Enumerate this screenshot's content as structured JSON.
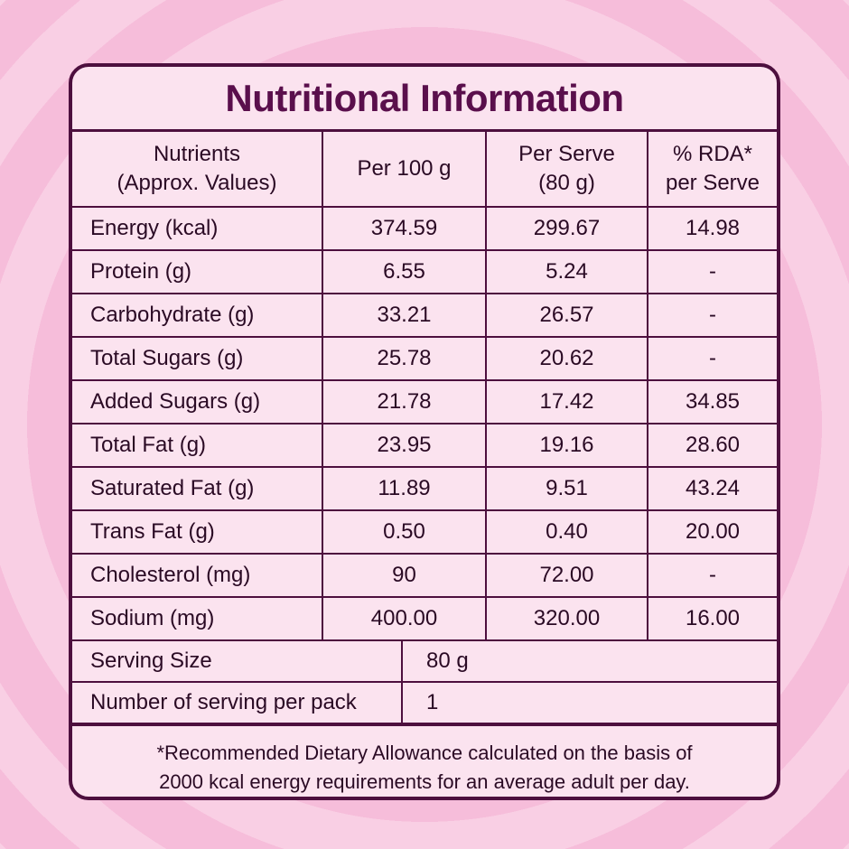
{
  "title": "Nutritional Information",
  "headers": {
    "nutrients_line1": "Nutrients",
    "nutrients_line2": "(Approx. Values)",
    "per100": "Per 100 g",
    "perserve_line1": "Per Serve",
    "perserve_line2": "(80 g)",
    "rda_line1": "% RDA*",
    "rda_line2": "per Serve"
  },
  "rows": [
    {
      "name": "Energy (kcal)",
      "per100": "374.59",
      "perserve": "299.67",
      "rda": "14.98"
    },
    {
      "name": "Protein (g)",
      "per100": "6.55",
      "perserve": "5.24",
      "rda": "-"
    },
    {
      "name": "Carbohydrate (g)",
      "per100": "33.21",
      "perserve": "26.57",
      "rda": "-"
    },
    {
      "name": "Total Sugars (g)",
      "per100": "25.78",
      "perserve": "20.62",
      "rda": "-"
    },
    {
      "name": "Added Sugars (g)",
      "per100": "21.78",
      "perserve": "17.42",
      "rda": "34.85"
    },
    {
      "name": "Total Fat (g)",
      "per100": "23.95",
      "perserve": "19.16",
      "rda": "28.60"
    },
    {
      "name": "Saturated Fat (g)",
      "per100": "11.89",
      "perserve": "9.51",
      "rda": "43.24"
    },
    {
      "name": "Trans Fat (g)",
      "per100": "0.50",
      "perserve": "0.40",
      "rda": "20.00"
    },
    {
      "name": "Cholesterol (mg)",
      "per100": "90",
      "perserve": "72.00",
      "rda": "-"
    },
    {
      "name": "Sodium (mg)",
      "per100": "400.00",
      "perserve": "320.00",
      "rda": "16.00"
    }
  ],
  "serving": [
    {
      "label": "Serving Size",
      "value": "80 g"
    },
    {
      "label": "Number of serving per pack",
      "value": "1"
    }
  ],
  "footnote": {
    "line1": "*Recommended Dietary Allowance calculated on the basis of",
    "line2": "2000 kcal energy requirements for an average adult per day."
  }
}
